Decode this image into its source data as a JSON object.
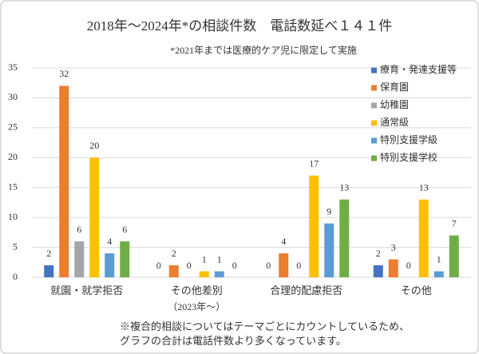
{
  "chart_data": {
    "type": "bar",
    "title": "2018年～2024年*の相談件数　電話数延べ１４１件",
    "subtitle": "*2021年までは医療的ケア児に限定して実施",
    "categories": [
      "就園・就学拒否",
      "その他差別",
      "合理的配慮拒否",
      "その他"
    ],
    "category_sublabels": [
      null,
      "（2023年～）",
      null,
      null
    ],
    "series": [
      {
        "name": "療育・発達支援等",
        "color": "#4472c4",
        "values": [
          2,
          0,
          0,
          2
        ]
      },
      {
        "name": "保育園",
        "color": "#ed7d31",
        "values": [
          32,
          2,
          4,
          3
        ]
      },
      {
        "name": "幼稚園",
        "color": "#a5a5a5",
        "values": [
          6,
          0,
          0,
          0
        ]
      },
      {
        "name": "通常級",
        "color": "#ffc000",
        "values": [
          20,
          1,
          17,
          13
        ]
      },
      {
        "name": "特別支援学級",
        "color": "#5b9bd5",
        "values": [
          4,
          1,
          9,
          1
        ]
      },
      {
        "name": "特別支援学校",
        "color": "#70ad47",
        "values": [
          6,
          0,
          13,
          7
        ]
      }
    ],
    "ylim": [
      0,
      35
    ],
    "yticks": [
      0,
      5,
      10,
      15,
      20,
      25,
      30,
      35
    ],
    "grid": true,
    "legend": "right",
    "notes": [
      "※複合的相談についてはテーマごとにカウントしているため、",
      "グラフの合計は電話件数より多くなっています。"
    ]
  }
}
